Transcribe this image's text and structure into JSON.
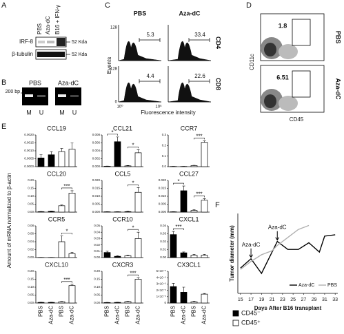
{
  "figure": {
    "panel_labels": [
      "A",
      "B",
      "C",
      "D",
      "E",
      "F"
    ],
    "panel_a": {
      "lanes": [
        "PBS",
        "Aza-dC",
        "B16 + IFN-γ"
      ],
      "rows": [
        "IRF-8",
        "β-tubulin"
      ],
      "markers": [
        "52 Kda",
        "52 Kda"
      ]
    },
    "panel_b": {
      "ladder": "200 bp",
      "groups": [
        {
          "name": "PBS",
          "lanes": [
            "M",
            "U"
          ]
        },
        {
          "name": "Aza-dC",
          "lanes": [
            "M",
            "U"
          ]
        }
      ]
    },
    "panel_c": {
      "columns": [
        "PBS",
        "Aza-dC"
      ],
      "rows": [
        "CD4",
        "CD8"
      ],
      "gates": [
        [
          "5.3",
          "33.4"
        ],
        [
          "4.4",
          "22.6"
        ]
      ],
      "ymax_labels": [
        "128",
        "128"
      ],
      "y_zero": "0",
      "x_labels": [
        "10⁰",
        "10⁶"
      ],
      "ylabel": "Events",
      "xlabel": "Fluorescence intensity"
    },
    "panel_d": {
      "rows": [
        "PBS",
        "Aza-dC"
      ],
      "gates": [
        "1.8",
        "6.51"
      ],
      "ylabel": "CD11c",
      "xlabel": "CD45"
    },
    "panel_e": {
      "ylabel": "Amount of mRNA normalized to β-actin",
      "legend": [
        {
          "name": "CD45⁻",
          "color": "#000000"
        },
        {
          "name": "CD45⁺",
          "color": "#ffffff"
        }
      ]
    }
  },
  "chart_data": [
    {
      "type": "bar",
      "title": "CCL19",
      "values": [
        0.00055,
        0.00075,
        0.00095,
        0.0011
      ],
      "errors": [
        0.0002,
        0.0002,
        0.0002,
        0.0004
      ],
      "colors": [
        "#000000",
        "#000000",
        "#ffffff",
        "#ffffff"
      ],
      "ylim": [
        0,
        0.002
      ],
      "yticks": [
        {
          "value": 0,
          "label": "0.0000"
        },
        0.0005,
        {
          "value": 0.001,
          "label": "0.0010"
        },
        0.0015,
        {
          "value": 0.002,
          "label": "0.0020"
        }
      ]
    },
    {
      "type": "bar",
      "title": "CCL21",
      "values": [
        0.0001,
        0.0063,
        0.0002,
        0.0035
      ],
      "errors": [
        5e-05,
        0.0012,
        0.0001,
        0.0008
      ],
      "colors": [
        "#000000",
        "#000000",
        "#ffffff",
        "#ffffff"
      ],
      "ylim": [
        0,
        0.008
      ],
      "yticks": [
        {
          "value": 0,
          "label": "0.000"
        },
        0.002,
        0.004,
        0.006,
        0.008
      ],
      "annotations": [
        {
          "text": "*",
          "from": 0,
          "to": 1
        },
        {
          "text": "*",
          "from": 2,
          "to": 3
        }
      ]
    },
    {
      "type": "bar",
      "title": "CCR7",
      "values": [
        0.002,
        0.002,
        0.01,
        0.23
      ],
      "errors": [
        0.001,
        0.001,
        0.003,
        0.015
      ],
      "colors": [
        "#000000",
        "#000000",
        "#ffffff",
        "#ffffff"
      ],
      "ylim": [
        0,
        0.3
      ],
      "yticks": [
        {
          "value": 0,
          "label": "0.0"
        },
        0.1,
        0.2,
        0.3
      ],
      "annotations": [
        {
          "text": "***",
          "from": 2,
          "to": 3
        }
      ]
    },
    {
      "type": "bar",
      "title": "CCL20",
      "values": [
        0.003,
        0.005,
        0.04,
        0.12
      ],
      "errors": [
        0.001,
        0.002,
        0.005,
        0.015
      ],
      "colors": [
        "#000000",
        "#000000",
        "#ffffff",
        "#ffffff"
      ],
      "ylim": [
        0,
        0.2
      ],
      "yticks": [
        {
          "value": 0,
          "label": "0.00"
        },
        0.05,
        {
          "value": 0.1,
          "label": "0.10"
        },
        0.15,
        {
          "value": 0.2,
          "label": "0.20"
        }
      ],
      "annotations": [
        {
          "text": "***",
          "from": 2,
          "to": 3
        }
      ]
    },
    {
      "type": "bar",
      "title": "CCL5",
      "values": [
        0.0002,
        0.0002,
        0.0003,
        0.0125
      ],
      "errors": [
        0.0001,
        0.0001,
        0.0002,
        0.003
      ],
      "colors": [
        "#000000",
        "#000000",
        "#ffffff",
        "#ffffff"
      ],
      "ylim": [
        0,
        0.02
      ],
      "yticks": [
        {
          "value": 0,
          "label": "0.000"
        },
        0.005,
        {
          "value": 0.01,
          "label": "0.010"
        },
        0.015,
        {
          "value": 0.02,
          "label": "0.020"
        }
      ],
      "annotations": [
        {
          "text": "*",
          "from": 2,
          "to": 3
        }
      ]
    },
    {
      "type": "bar",
      "title": "CCL27",
      "values": [
        0.0002,
        0.0135,
        0.001,
        0.0075
      ],
      "errors": [
        0.0001,
        0.003,
        0.0005,
        0.001
      ],
      "colors": [
        "#000000",
        "#000000",
        "#ffffff",
        "#ffffff"
      ],
      "ylim": [
        0,
        0.02
      ],
      "yticks": [
        {
          "value": 0,
          "label": "0.000"
        },
        0.005,
        {
          "value": 0.01,
          "label": "0.010"
        },
        0.015,
        {
          "value": 0.02,
          "label": "0.020"
        }
      ],
      "annotations": [
        {
          "text": "*",
          "from": 0,
          "to": 1
        },
        {
          "text": "***",
          "from": 2,
          "to": 3
        }
      ]
    },
    {
      "type": "bar",
      "title": "CCR5",
      "values": [
        0.0003,
        0.0003,
        0.04,
        0.01
      ],
      "errors": [
        0.0002,
        0.0002,
        0.015,
        0.003
      ],
      "colors": [
        "#000000",
        "#000000",
        "#ffffff",
        "#ffffff"
      ],
      "ylim": [
        0,
        0.08
      ],
      "yticks": [
        {
          "value": 0,
          "label": "0.00"
        },
        0.02,
        0.04,
        0.06,
        0.08
      ],
      "annotations": [
        {
          "text": "*",
          "from": 2,
          "to": 3
        }
      ]
    },
    {
      "type": "bar",
      "title": "CCR10",
      "values": [
        0.008,
        0.002,
        0.003,
        0.03
      ],
      "errors": [
        0.002,
        0.001,
        0.001,
        0.01
      ],
      "colors": [
        "#000000",
        "#000000",
        "#ffffff",
        "#ffffff"
      ],
      "ylim": [
        0,
        0.05
      ],
      "yticks": [
        {
          "value": 0,
          "label": "0.00"
        },
        0.01,
        0.02,
        0.03,
        0.04,
        0.05
      ],
      "annotations": [
        {
          "text": "*",
          "from": 2,
          "to": 3
        }
      ]
    },
    {
      "type": "bar",
      "title": "CXCL1",
      "values": [
        0.029,
        0.006,
        0.003,
        0.003
      ],
      "errors": [
        0.004,
        0.001,
        0.001,
        0.001
      ],
      "colors": [
        "#000000",
        "#000000",
        "#ffffff",
        "#ffffff"
      ],
      "ylim": [
        0,
        0.04
      ],
      "yticks": [
        {
          "value": 0,
          "label": "0.00"
        },
        0.01,
        0.02,
        0.03,
        0.04
      ],
      "annotations": [
        {
          "text": "***",
          "from": 0,
          "to": 1
        }
      ]
    },
    {
      "type": "bar",
      "title": "CXCL10",
      "categories": [
        "PBS",
        "Aza-dC",
        "PBS",
        "Aza-dC"
      ],
      "values": [
        0.004,
        0.004,
        0.008,
        0.11
      ],
      "errors": [
        0.001,
        0.001,
        0.002,
        0.008
      ],
      "colors": [
        "#000000",
        "#000000",
        "#ffffff",
        "#ffffff"
      ],
      "ylim": [
        0,
        0.2
      ],
      "yticks": [
        {
          "value": 0,
          "label": "0.00"
        },
        0.05,
        {
          "value": 0.1,
          "label": "0.10"
        },
        0.15,
        {
          "value": 0.2,
          "label": "0.20"
        }
      ],
      "annotations": [
        {
          "text": "***",
          "from": 2,
          "to": 3
        }
      ]
    },
    {
      "type": "bar",
      "title": "CXCR3",
      "categories": [
        "PBS",
        "Aza-dC",
        "PBS",
        "Aza-dC"
      ],
      "values": [
        0.003,
        0.004,
        0.009,
        0.15
      ],
      "errors": [
        0.001,
        0.001,
        0.002,
        0.01
      ],
      "colors": [
        "#000000",
        "#000000",
        "#ffffff",
        "#ffffff"
      ],
      "ylim": [
        0,
        0.2
      ],
      "yticks": [
        {
          "value": 0,
          "label": "0.00"
        },
        0.05,
        {
          "value": 0.1,
          "label": "0.10"
        },
        0.15,
        {
          "value": 0.2,
          "label": "0.20"
        }
      ],
      "annotations": [
        {
          "text": "***",
          "from": 2,
          "to": 3
        }
      ]
    },
    {
      "type": "bar",
      "title": "CX3CL1",
      "categories": [
        "PBS",
        "Aza-dC",
        "PBS",
        "Aza-dC"
      ],
      "values": [
        2.6e-05,
        1.7e-05,
        2e-06,
        1.4e-05
      ],
      "errors": [
        5e-06,
        8e-06,
        1e-06,
        1e-06
      ],
      "colors": [
        "#000000",
        "#000000",
        "#ffffff",
        "#ffffff"
      ],
      "ylim": [
        0,
        5e-05
      ],
      "yticks": [
        0,
        {
          "value": 1e-05,
          "label": "1×10⁻⁵"
        },
        {
          "value": 2e-05,
          "label": "2×10⁻⁵"
        },
        {
          "value": 3e-05,
          "label": "3×10⁻⁵"
        },
        {
          "value": 4e-05,
          "label": "4×10⁻⁵"
        },
        {
          "value": 5e-05,
          "label": "5×10⁻⁵"
        }
      ]
    },
    {
      "type": "line",
      "xlabel": "Days After B16 transplant",
      "ylabel": "Tumor diameter (mm)",
      "xlim": [
        14.5,
        33.5
      ],
      "xticks": [
        15,
        17,
        19,
        21,
        23,
        25,
        27,
        29,
        31,
        33
      ],
      "ylim": [
        5,
        35
      ],
      "series": [
        {
          "name": "Aza-dC",
          "color": "#000000",
          "x": [
            15,
            17,
            19,
            22,
            24,
            26,
            28,
            30,
            31,
            33
          ],
          "values": [
            14.5,
            18,
            12.5,
            24.5,
            21.5,
            21.5,
            24,
            20.5,
            26.5,
            27
          ]
        },
        {
          "name": "PBS",
          "color": "#b0b0b0",
          "x": [
            15,
            17,
            19,
            21,
            22,
            24,
            26,
            28
          ],
          "values": [
            14,
            17,
            19.5,
            21,
            23,
            26,
            29,
            30.5
          ]
        }
      ],
      "annotations": [
        {
          "text": "Aza-dC",
          "x": 17
        },
        {
          "text": "Aza-dC",
          "x": 22
        }
      ]
    }
  ]
}
